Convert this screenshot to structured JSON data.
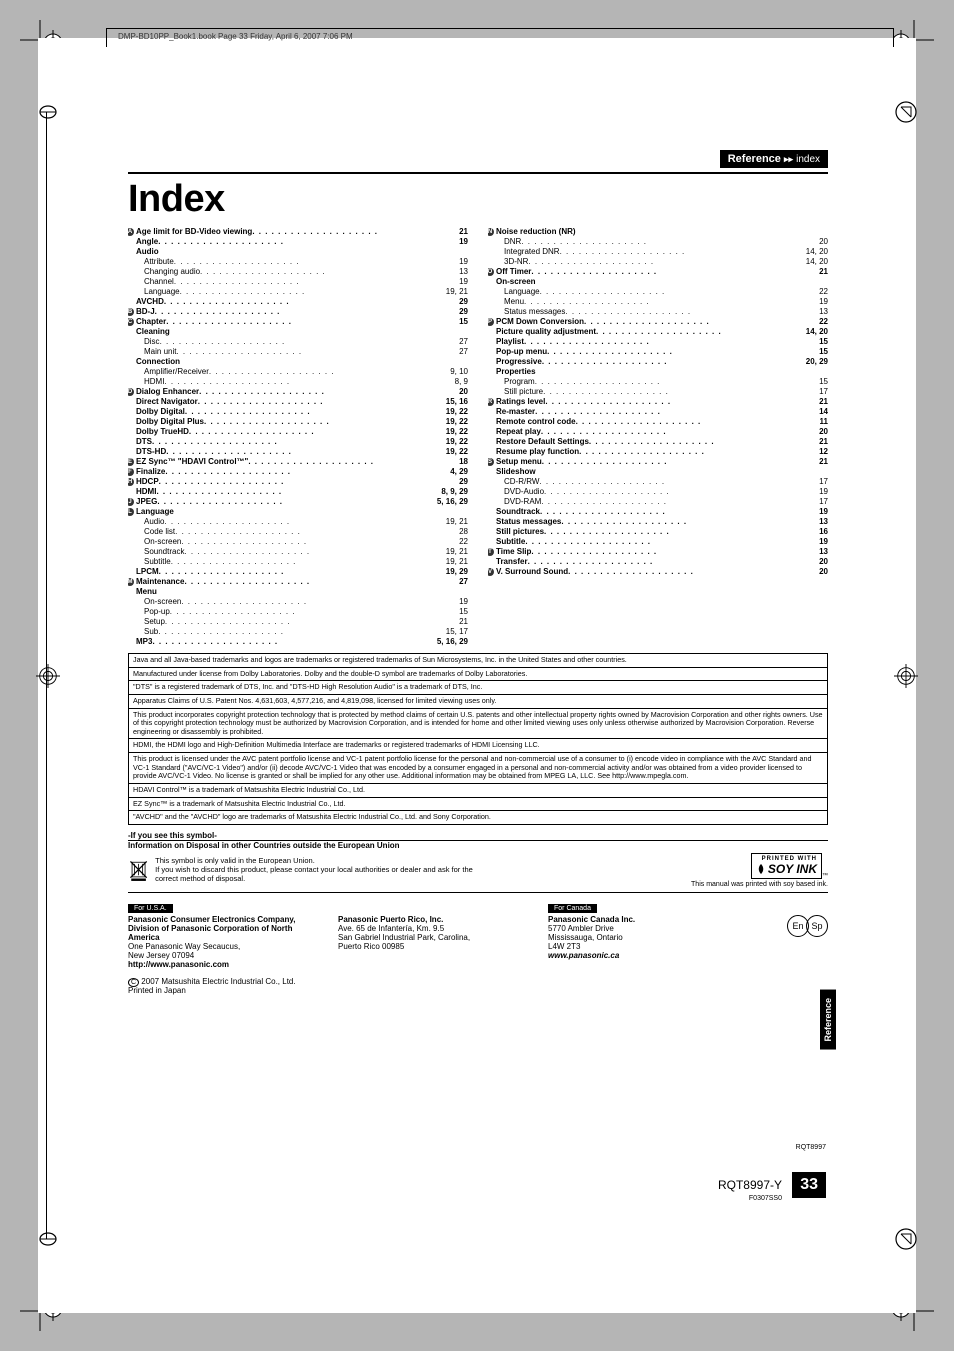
{
  "book_line": "DMP-BD10PP_Book1.book  Page 33  Friday, April 6, 2007  7:06 PM",
  "header": {
    "section": "Reference",
    "arrows": "▸▸",
    "sub": "index"
  },
  "title": "Index",
  "left_col": [
    {
      "t": "main",
      "b": "A",
      "label": "Age limit for BD-Video viewing",
      "p": "21"
    },
    {
      "t": "main",
      "label": "Angle",
      "p": "19"
    },
    {
      "t": "main",
      "label": "Audio"
    },
    {
      "t": "sub",
      "label": "Attribute",
      "p": "19"
    },
    {
      "t": "sub",
      "label": "Changing audio",
      "p": "13"
    },
    {
      "t": "sub",
      "label": "Channel",
      "p": "19"
    },
    {
      "t": "sub",
      "label": "Language",
      "p": "19, 21"
    },
    {
      "t": "main",
      "label": "AVCHD",
      "p": "29"
    },
    {
      "t": "main",
      "b": "B",
      "label": "BD-J",
      "p": "29"
    },
    {
      "t": "main",
      "b": "C",
      "label": "Chapter",
      "p": "15"
    },
    {
      "t": "main",
      "label": "Cleaning"
    },
    {
      "t": "sub",
      "label": "Disc",
      "p": "27"
    },
    {
      "t": "sub",
      "label": "Main unit",
      "p": "27"
    },
    {
      "t": "main",
      "label": "Connection"
    },
    {
      "t": "sub",
      "label": "Amplifier/Receiver",
      "p": "9, 10"
    },
    {
      "t": "sub",
      "label": "HDMI",
      "p": "8, 9"
    },
    {
      "t": "main",
      "b": "D",
      "label": "Dialog Enhancer",
      "p": "20"
    },
    {
      "t": "main",
      "label": "Direct Navigator",
      "p": "15, 16"
    },
    {
      "t": "main",
      "label": "Dolby Digital",
      "p": "19, 22"
    },
    {
      "t": "main",
      "label": "Dolby Digital Plus",
      "p": "19, 22"
    },
    {
      "t": "main",
      "label": "Dolby TrueHD",
      "p": "19, 22"
    },
    {
      "t": "main",
      "label": "DTS",
      "p": "19, 22"
    },
    {
      "t": "main",
      "label": "DTS-HD",
      "p": "19, 22"
    },
    {
      "t": "main",
      "b": "E",
      "label": "EZ Sync™ \"HDAVI Control™\"",
      "p": "18"
    },
    {
      "t": "main",
      "b": "F",
      "label": "Finalize",
      "p": "4, 29"
    },
    {
      "t": "main",
      "b": "H",
      "label": "HDCP",
      "p": "29"
    },
    {
      "t": "main",
      "label": "HDMI",
      "p": "8, 9, 29"
    },
    {
      "t": "main",
      "b": "J",
      "label": "JPEG",
      "p": "5, 16, 29"
    },
    {
      "t": "main",
      "b": "L",
      "label": "Language"
    },
    {
      "t": "sub",
      "label": "Audio",
      "p": "19, 21"
    },
    {
      "t": "sub",
      "label": "Code list",
      "p": "28"
    },
    {
      "t": "sub",
      "label": "On-screen",
      "p": "22"
    },
    {
      "t": "sub",
      "label": "Soundtrack",
      "p": "19, 21"
    },
    {
      "t": "sub",
      "label": "Subtitle",
      "p": "19, 21"
    },
    {
      "t": "main",
      "label": "LPCM",
      "p": "19, 29"
    },
    {
      "t": "main",
      "b": "M",
      "label": "Maintenance",
      "p": "27"
    },
    {
      "t": "main",
      "label": "Menu"
    },
    {
      "t": "sub",
      "label": "On-screen",
      "p": "19"
    },
    {
      "t": "sub",
      "label": "Pop-up",
      "p": "15"
    },
    {
      "t": "sub",
      "label": "Setup",
      "p": "21"
    },
    {
      "t": "sub",
      "label": "Sub",
      "p": "15, 17"
    },
    {
      "t": "main",
      "label": "MP3",
      "p": "5, 16, 29"
    }
  ],
  "right_col": [
    {
      "t": "main",
      "b": "N",
      "label": "Noise reduction (NR)"
    },
    {
      "t": "sub",
      "label": "DNR",
      "p": "20"
    },
    {
      "t": "sub",
      "label": "Integrated DNR",
      "p": "14, 20"
    },
    {
      "t": "sub",
      "label": "3D-NR",
      "p": "14, 20"
    },
    {
      "t": "main",
      "b": "O",
      "label": "Off Timer",
      "p": "21"
    },
    {
      "t": "main",
      "label": "On-screen"
    },
    {
      "t": "sub",
      "label": "Language",
      "p": "22"
    },
    {
      "t": "sub",
      "label": "Menu",
      "p": "19"
    },
    {
      "t": "sub",
      "label": "Status messages",
      "p": "13"
    },
    {
      "t": "main",
      "b": "P",
      "label": "PCM Down Conversion",
      "p": "22"
    },
    {
      "t": "main",
      "label": "Picture quality adjustment",
      "p": "14, 20"
    },
    {
      "t": "main",
      "label": "Playlist",
      "p": "15"
    },
    {
      "t": "main",
      "label": "Pop-up menu",
      "p": "15"
    },
    {
      "t": "main",
      "label": "Progressive",
      "p": "20, 29"
    },
    {
      "t": "main",
      "label": "Properties"
    },
    {
      "t": "sub",
      "label": "Program",
      "p": "15"
    },
    {
      "t": "sub",
      "label": "Still picture",
      "p": "17"
    },
    {
      "t": "main",
      "b": "R",
      "label": "Ratings level",
      "p": "21"
    },
    {
      "t": "main",
      "label": "Re-master",
      "p": "14"
    },
    {
      "t": "main",
      "label": "Remote control code",
      "p": "11"
    },
    {
      "t": "main",
      "label": "Repeat play",
      "p": "20"
    },
    {
      "t": "main",
      "label": "Restore Default Settings",
      "p": "21"
    },
    {
      "t": "main",
      "label": "Resume play function",
      "p": "12"
    },
    {
      "t": "main",
      "b": "S",
      "label": "Setup menu",
      "p": "21"
    },
    {
      "t": "main",
      "label": "Slideshow"
    },
    {
      "t": "sub",
      "label": "CD-R/RW",
      "p": "17"
    },
    {
      "t": "sub",
      "label": "DVD-Audio",
      "p": "19"
    },
    {
      "t": "sub",
      "label": "DVD-RAM",
      "p": "17"
    },
    {
      "t": "main",
      "label": "Soundtrack",
      "p": "19"
    },
    {
      "t": "main",
      "label": "Status messages",
      "p": "13"
    },
    {
      "t": "main",
      "label": "Still pictures",
      "p": "16"
    },
    {
      "t": "main",
      "label": "Subtitle",
      "p": "19"
    },
    {
      "t": "main",
      "b": "T",
      "label": "Time Slip",
      "p": "13"
    },
    {
      "t": "main",
      "label": "Transfer",
      "p": "20"
    },
    {
      "t": "main",
      "b": "V",
      "label": "V. Surround Sound",
      "p": "20"
    }
  ],
  "legal": [
    "Java and all Java-based trademarks and logos are trademarks or registered trademarks of Sun Microsystems, Inc. in the United States and other countries.",
    "Manufactured under license from Dolby Laboratories. Dolby and the double-D symbol are trademarks of Dolby Laboratories.",
    "\"DTS\" is a registered trademark of DTS, Inc. and \"DTS-HD High Resolution Audio\" is a trademark of DTS, Inc.",
    "Apparatus Claims of U.S. Patent Nos. 4,631,603, 4,577,216, and 4,819,098, licensed for limited viewing uses only.",
    "This product incorporates copyright protection technology that is protected by method claims of certain U.S. patents and other intellectual property rights owned by Macrovision Corporation and other rights owners. Use of this copyright protection technology must be authorized by Macrovision Corporation, and is intended for home and other limited viewing uses only unless otherwise authorized by Macrovision Corporation. Reverse engineering or disassembly is prohibited.",
    "HDMI, the HDMI logo and High-Definition Multimedia Interface are trademarks or registered trademarks of HDMI Licensing LLC.",
    "This product is licensed under the AVC patent portfolio license and VC-1 patent portfolio license for the personal and non-commercial use of a consumer to (i) encode video in compliance with the AVC Standard and VC-1 Standard (\"AVC/VC-1 Video\") and/or (ii) decode AVC/VC-1 Video that was encoded by a consumer engaged in a personal and non-commercial activity and/or was obtained from a video provider licensed to provide AVC/VC-1 Video. No license is granted or shall be implied for any other use. Additional information may be obtained from MPEG LA, LLC. See http://www.mpegla.com.",
    "HDAVI Control™ is a trademark of Matsushita Electric Industrial Co., Ltd.",
    "EZ Sync™ is a trademark of Matsushita Electric Industrial Co., Ltd.",
    "\"AVCHD\" and the \"AVCHD\" logo are trademarks of Matsushita Electric Industrial Co., Ltd. and Sony Corporation."
  ],
  "disposal": {
    "heading": "-If you see this symbol-",
    "subheading": "Information on Disposal in other Countries outside the European Union",
    "body": "This symbol is only valid in the European Union.\nIf you wish to discard this product, please contact your local authorities or dealer and ask for the correct method of disposal."
  },
  "soyink": {
    "label1": "PRINTED WITH",
    "label2": "SOY INK",
    "tm": "™",
    "note": "This manual was printed with soy based ink."
  },
  "lang": {
    "en": "En",
    "sp": "Sp"
  },
  "footer": {
    "usa_chip": "For U.S.A.",
    "usa": {
      "name": "Panasonic Consumer Electronics Company, Division of Panasonic Corporation of North America",
      "addr": "One Panasonic Way Secaucus,\nNew Jersey 07094",
      "url": "http://www.panasonic.com"
    },
    "pr": {
      "name": "Panasonic Puerto Rico, Inc.",
      "addr": "Ave. 65 de Infantería, Km. 9.5\nSan Gabriel Industrial Park, Carolina,\nPuerto Rico 00985"
    },
    "canada_chip": "For Canada",
    "canada": {
      "name": "Panasonic Canada Inc.",
      "addr": "5770 Ambler Drive\nMississauga, Ontario\nL4W 2T3",
      "url": "www.panasonic.ca"
    },
    "copyright": "2007 Matsushita Electric Industrial Co., Ltd.",
    "printed": "Printed in Japan"
  },
  "side_tab": "Reference",
  "model": "RQT8997-Y",
  "code": "F0307SS0",
  "small_code": "RQT8997",
  "page_num": "33"
}
